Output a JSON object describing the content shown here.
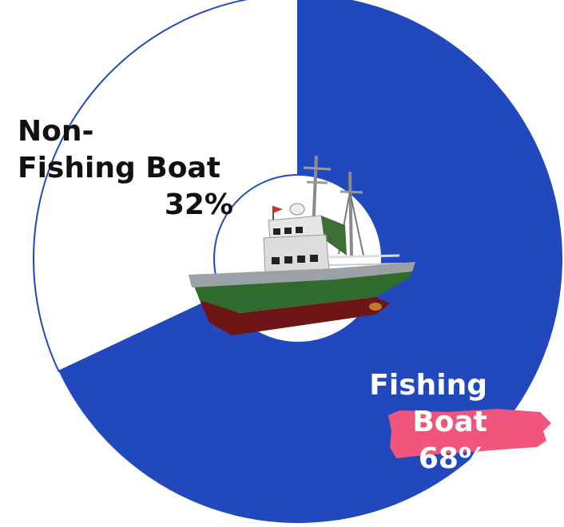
{
  "chart_data": {
    "type": "pie",
    "style": "donut",
    "categories": [
      "Fishing Boat",
      "Non-Fishing Boat"
    ],
    "values": [
      68,
      32
    ],
    "value_labels": [
      "68%",
      "32%"
    ],
    "title": "",
    "center_icon": "fishing-boat-illustration"
  },
  "labels": {
    "fishing_name": "Fishing Boat",
    "fishing_pct": "68%",
    "nonfishing_name_line1": "Non-",
    "nonfishing_name_line2": "Fishing Boat",
    "nonfishing_pct": "32%"
  },
  "colors": {
    "fishing": "#2248BE",
    "non_fishing": "#FFFFFF",
    "outline": "#2248BE",
    "pct_badge": "#F0567C",
    "boat_hull_green": "#2F6B2C",
    "boat_hull_red": "#6E1518",
    "boat_cabin": "#E6E6E6"
  }
}
